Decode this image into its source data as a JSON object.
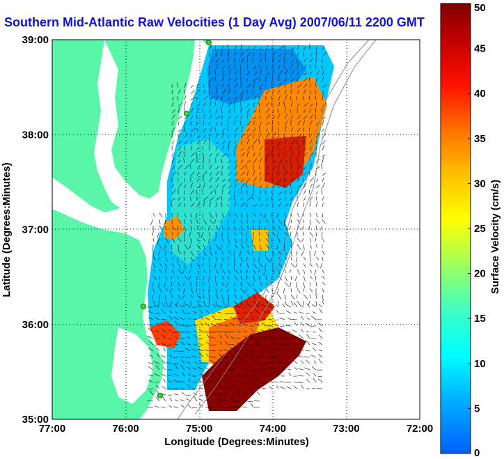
{
  "title": "Southern Mid-Atlantic Raw Velocities (1 Day Avg) 2007/06/11 2200 GMT",
  "x_axis": {
    "label": "Longitude (Degrees:Minutes)",
    "ticks": [
      "77:00",
      "76:00",
      "75:00",
      "74:00",
      "73:00",
      "72:00"
    ]
  },
  "y_axis": {
    "label": "Latitude (Degrees:Minutes)",
    "ticks": [
      "39:00",
      "38:00",
      "37:00",
      "36:00",
      "35:00"
    ]
  },
  "colorbar": {
    "label": "Surface Velocity (cm/s)",
    "ticks": [
      "0",
      "5",
      "10",
      "15",
      "20",
      "25",
      "30",
      "35",
      "40",
      "45",
      "50"
    ],
    "min": 0,
    "max": 50
  },
  "colors": {
    "land": "#5af5a8",
    "title": "#1010e0",
    "station": "#33dd33"
  },
  "grid": "dotted"
}
